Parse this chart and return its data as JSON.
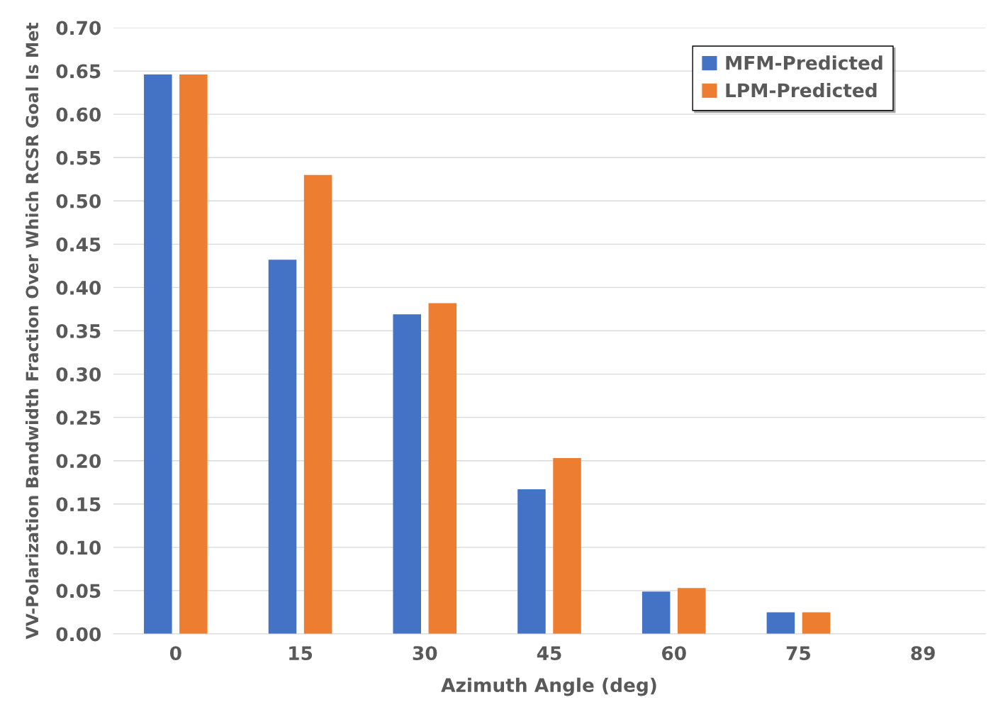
{
  "chart_data": {
    "type": "bar",
    "xlabel": "Azimuth Angle (deg)",
    "ylabel": "VV-Polarization Bandwidth Fraction Over Which RCSR Goal Is Met",
    "categories": [
      "0",
      "15",
      "30",
      "45",
      "60",
      "75",
      "89"
    ],
    "series": [
      {
        "name": "MFM-Predicted",
        "color": "#4472c4",
        "values": [
          0.646,
          0.432,
          0.369,
          0.167,
          0.049,
          0.025,
          0
        ]
      },
      {
        "name": "LPM-Predicted",
        "color": "#ed7d31",
        "values": [
          0.646,
          0.53,
          0.382,
          0.203,
          0.053,
          0.025,
          0
        ]
      }
    ],
    "ylim": [
      0,
      0.7
    ],
    "yticks": [
      {
        "value": 0,
        "label": "0.00"
      },
      {
        "value": 0.05,
        "label": "0.05"
      },
      {
        "value": 0.1,
        "label": "0.10"
      },
      {
        "value": 0.15,
        "label": "0.15"
      },
      {
        "value": 0.2,
        "label": "0.20"
      },
      {
        "value": 0.25,
        "label": "0.25"
      },
      {
        "value": 0.3,
        "label": "0.30"
      },
      {
        "value": 0.35,
        "label": "0.35"
      },
      {
        "value": 0.4,
        "label": "0.40"
      },
      {
        "value": 0.45,
        "label": "0.45"
      },
      {
        "value": 0.5,
        "label": "0.50"
      },
      {
        "value": 0.55,
        "label": "0.55"
      },
      {
        "value": 0.6,
        "label": "0.60"
      },
      {
        "value": 0.65,
        "label": "0.65"
      },
      {
        "value": 0.7,
        "label": "0.70"
      }
    ],
    "grid": "y",
    "legend": "top right"
  }
}
